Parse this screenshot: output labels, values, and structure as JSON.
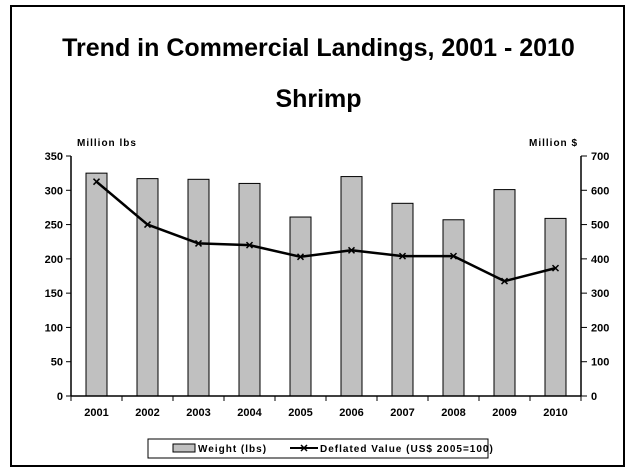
{
  "chart_data": {
    "type": "bar+line",
    "title": "Trend in Commercial Landings, 2001 - 2010",
    "subtitle": "Shrimp",
    "categories": [
      "2001",
      "2002",
      "2003",
      "2004",
      "2005",
      "2006",
      "2007",
      "2008",
      "2009",
      "2010"
    ],
    "left_axis": {
      "label": "Million lbs",
      "ylim": [
        0,
        350
      ],
      "ticks": [
        "0",
        "50",
        "100",
        "150",
        "200",
        "250",
        "300",
        "350"
      ]
    },
    "right_axis": {
      "label": "Million $",
      "ylim": [
        0,
        700
      ],
      "ticks": [
        "0",
        "100",
        "200",
        "300",
        "400",
        "500",
        "600",
        "700"
      ]
    },
    "series": [
      {
        "name": "Weight (lbs)",
        "type": "bar",
        "axis": "left",
        "color": "#c0c0c0",
        "values": [
          325,
          317,
          316,
          310,
          261,
          320,
          281,
          257,
          301,
          259
        ]
      },
      {
        "name": "Deflated Value (US$ 2005=100)",
        "type": "line",
        "axis": "right",
        "color": "#000000",
        "values": [
          625,
          500,
          445,
          440,
          406,
          425,
          408,
          408,
          335,
          373
        ]
      }
    ],
    "legend_position": "bottom",
    "grid": false
  }
}
